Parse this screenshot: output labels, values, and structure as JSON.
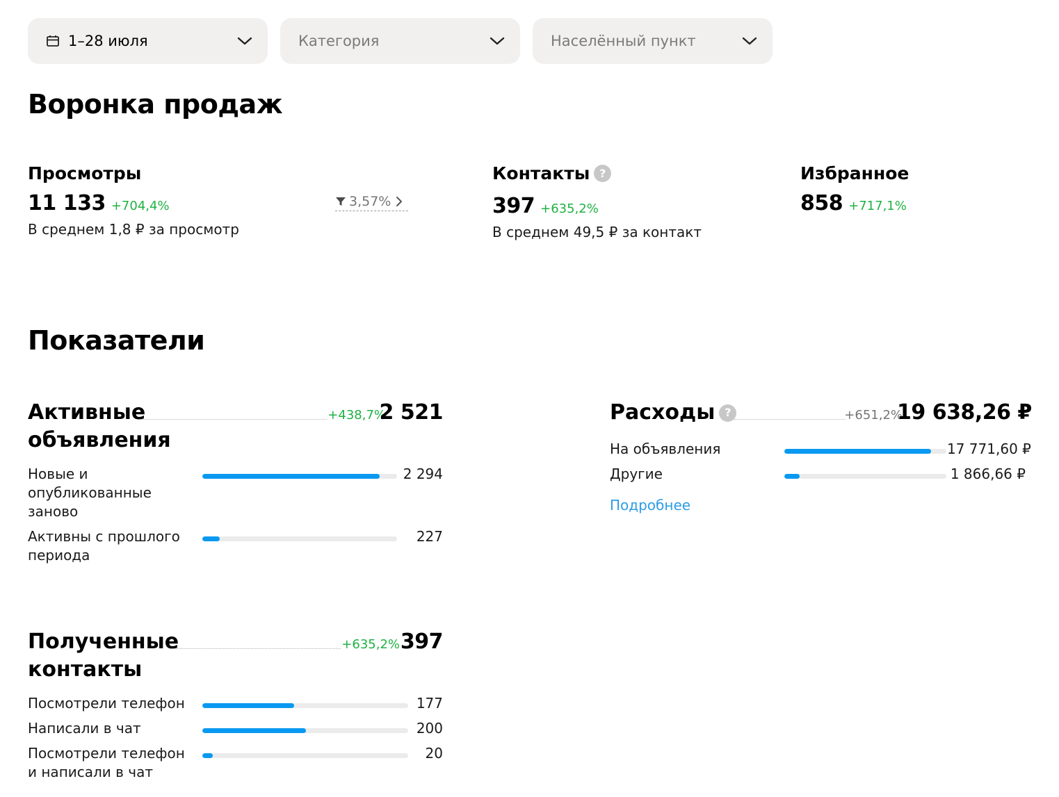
{
  "filters": {
    "period": "1–28 июля",
    "category_placeholder": "Категория",
    "location_placeholder": "Населённый пункт"
  },
  "funnel": {
    "title": "Воронка продаж",
    "views": {
      "label": "Просмотры",
      "value": "11 133",
      "delta": "+704,4%",
      "sub": "В среднем 1,8 ₽ за просмотр"
    },
    "conversion": "3,57%",
    "contacts": {
      "label": "Контакты",
      "value": "397",
      "delta": "+635,2%",
      "sub": "В среднем 49,5 ₽ за контакт"
    },
    "favorites": {
      "label": "Избранное",
      "value": "858",
      "delta": "+717,1%"
    }
  },
  "metrics": {
    "title": "Показатели",
    "active_ads": {
      "title": "Активные объявления",
      "delta": "+438,7%",
      "total": "2 521",
      "rows": [
        {
          "label": "Новые и опубликованные заново",
          "value": "2 294",
          "fraction": 0.91
        },
        {
          "label": "Активны с прошлого периода",
          "value": "227",
          "fraction": 0.09
        }
      ]
    },
    "expenses": {
      "title": "Расходы",
      "delta": "+651,2%",
      "total": "19 638,26 ₽",
      "rows": [
        {
          "label": "На объявления",
          "value": "17 771,60 ₽",
          "fraction": 0.905
        },
        {
          "label": "Другие",
          "value": "1 866,66 ₽",
          "fraction": 0.095
        }
      ],
      "more_link": "Подробнее"
    },
    "contacts": {
      "title": "Полученные контакты",
      "delta": "+635,2%",
      "total": "397",
      "rows": [
        {
          "label": "Посмотрели телефон",
          "value": "177",
          "fraction": 0.445
        },
        {
          "label": "Написали в чат",
          "value": "200",
          "fraction": 0.503
        },
        {
          "label": "Посмотрели телефон и написали в чат",
          "value": "20",
          "fraction": 0.05
        }
      ]
    }
  },
  "colors": {
    "accent": "#0a99f0",
    "positive": "#1fb143",
    "filter_bg": "#f1f0ef",
    "link": "#2e9de6"
  }
}
